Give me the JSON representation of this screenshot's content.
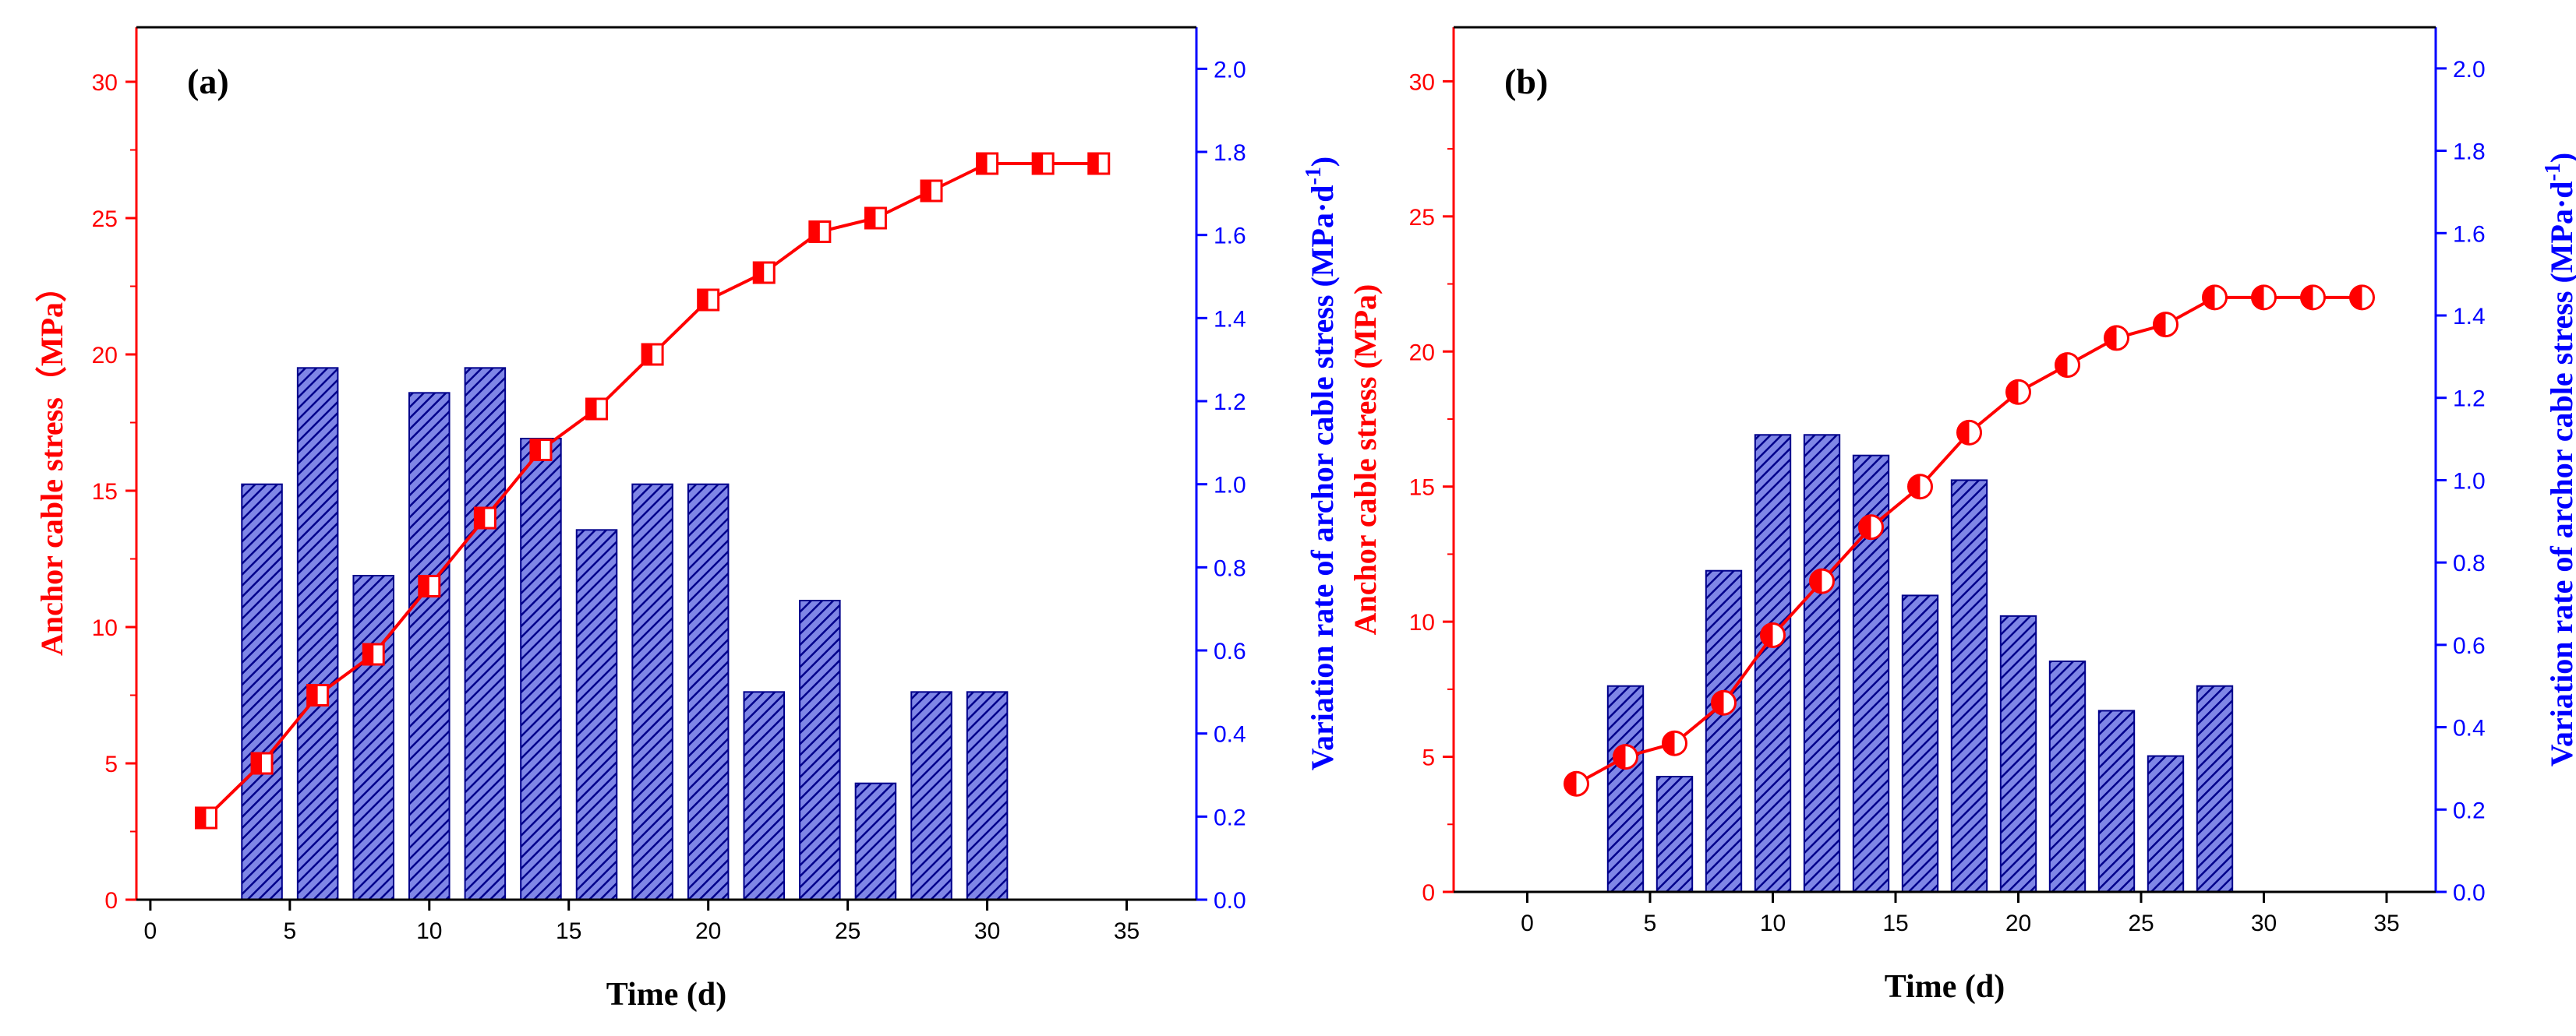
{
  "figure": {
    "colors": {
      "stress": "#ff0000",
      "rate": "#0000ff",
      "bar_fill": "#7f86e6",
      "bar_hatch": "#00008b",
      "axis_x": "#000000"
    }
  },
  "chart_data": [
    {
      "panel": "(a)",
      "type": "bar+line",
      "xlabel": "Time (d)",
      "ylabel_left": "Anchor cable stress（MPa）",
      "ylabel_right": "Variation rate of archor cable stress (MPa·d",
      "ylabel_right_sup": "-1",
      "ylabel_right_end": ")",
      "xlim": [
        -0.5,
        37.5
      ],
      "xticks": [
        0,
        5,
        10,
        15,
        20,
        25,
        30,
        35
      ],
      "ylim_left": [
        0,
        32
      ],
      "yticks_left": [
        0,
        5,
        10,
        15,
        20,
        25,
        30
      ],
      "ylim_right": [
        0,
        2.1
      ],
      "yticks_right": [
        "0.0",
        "0.2",
        "0.4",
        "0.6",
        "0.8",
        "1.0",
        "1.2",
        "1.4",
        "1.6",
        "1.8",
        "2.0"
      ],
      "marker": "half-filled-square",
      "line_series": {
        "name": "Anchor cable stress",
        "x": [
          2,
          4,
          6,
          8,
          10,
          12,
          14,
          16,
          18,
          20,
          22,
          24,
          26,
          28,
          30,
          32,
          34
        ],
        "y": [
          3,
          5,
          7.5,
          9,
          11.5,
          14,
          16.5,
          18,
          20,
          22,
          23,
          24.5,
          25,
          26,
          27,
          27,
          27
        ]
      },
      "bar_series": {
        "name": "Variation rate of archor cable stress",
        "x": [
          4,
          6,
          8,
          10,
          12,
          14,
          16,
          18,
          20,
          22,
          24,
          26,
          28,
          30
        ],
        "y": [
          1.0,
          1.28,
          0.78,
          1.22,
          1.28,
          1.11,
          0.89,
          1.0,
          1.0,
          0.5,
          0.72,
          0.28,
          0.5,
          0.5
        ]
      }
    },
    {
      "panel": "(b)",
      "type": "bar+line",
      "xlabel": "Time (d)",
      "ylabel_left": "Anchor cable stress (MPa)",
      "ylabel_right": "Variation rate of archor cable stress (MPa·d",
      "ylabel_right_sup": "-1",
      "ylabel_right_end": ")",
      "xlim": [
        -3,
        37
      ],
      "xticks": [
        0,
        5,
        10,
        15,
        20,
        25,
        30,
        35
      ],
      "ylim_left": [
        0,
        32
      ],
      "yticks_left": [
        0,
        5,
        10,
        15,
        20,
        25,
        30
      ],
      "ylim_right": [
        0,
        2.1
      ],
      "yticks_right": [
        "0.0",
        "0.2",
        "0.4",
        "0.6",
        "0.8",
        "1.0",
        "1.2",
        "1.4",
        "1.6",
        "1.8",
        "2.0"
      ],
      "marker": "half-filled-circle",
      "line_series": {
        "name": "Anchor cable stress",
        "x": [
          2,
          4,
          6,
          8,
          10,
          12,
          14,
          16,
          18,
          20,
          22,
          24,
          26,
          28,
          30,
          32,
          34
        ],
        "y": [
          4,
          5,
          5.5,
          7,
          9.5,
          11.5,
          13.5,
          15,
          17,
          18.5,
          19.5,
          20.5,
          21,
          22,
          22,
          22,
          22
        ]
      },
      "bar_series": {
        "name": "Variation rate of archor cable stress",
        "x": [
          4,
          6,
          8,
          10,
          12,
          14,
          16,
          18,
          20,
          22,
          24,
          26,
          28
        ],
        "y": [
          0.5,
          0.28,
          0.78,
          1.11,
          1.11,
          1.06,
          0.72,
          1.0,
          0.67,
          0.56,
          0.44,
          0.33,
          0.5
        ]
      }
    }
  ]
}
